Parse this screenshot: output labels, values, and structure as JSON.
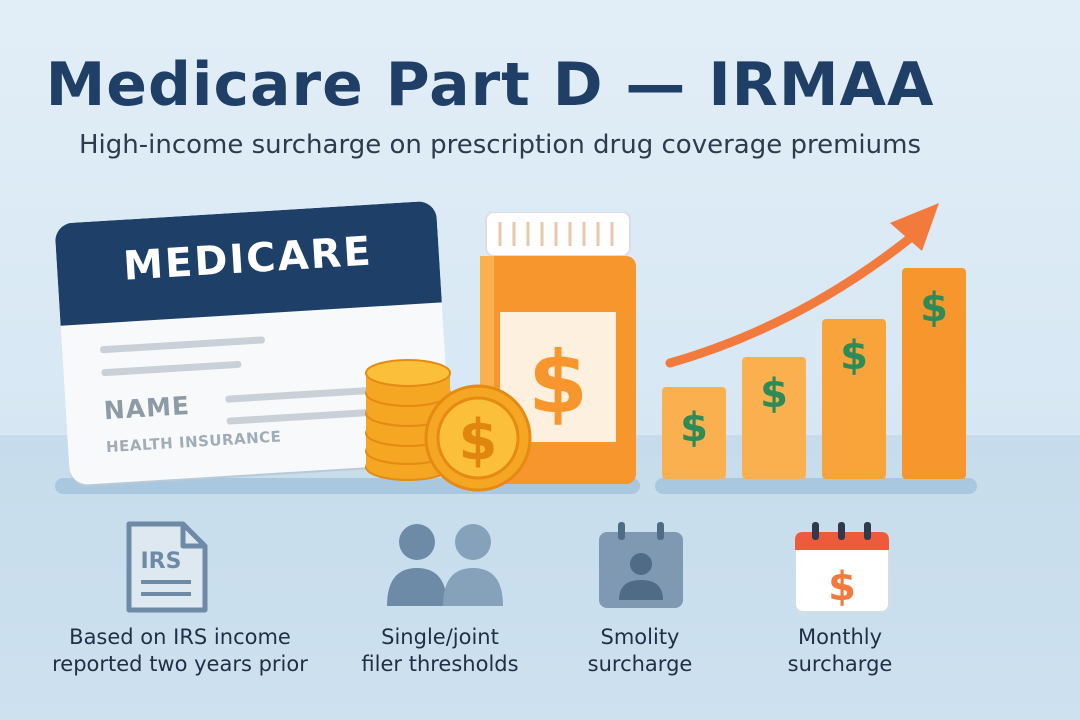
{
  "header": {
    "title": "Medicare Part D — IRMAA",
    "subtitle": "High-income surcharge on prescription drug coverage premiums"
  },
  "card": {
    "brand": "MEDICARE",
    "name_label": "NAME",
    "type_label": "HEALTH INSURANCE"
  },
  "pill_bottle": {
    "symbol": "$"
  },
  "coin": {
    "symbol": "$"
  },
  "chart_bars": {
    "symbol": "$",
    "bar_count": 4,
    "trend": "up"
  },
  "colors": {
    "navy": "#1e3f68",
    "orange": "#f7962c",
    "green": "#2e8b57",
    "arrow": "#f27a3d",
    "icon_slate": "#6d8aa6"
  },
  "features": [
    {
      "icon": "irs-document-icon",
      "icon_text": "IRS",
      "caption_lines": [
        "Based on IRS income",
        "reported two years prior"
      ]
    },
    {
      "icon": "people-icon",
      "caption_lines": [
        "Single/joint",
        "filer thresholds"
      ]
    },
    {
      "icon": "person-calendar-icon",
      "caption_lines": [
        "Smolity",
        "surcharge"
      ]
    },
    {
      "icon": "dollar-calendar-icon",
      "icon_text": "$",
      "caption_lines": [
        "Monthly",
        "surcharge"
      ]
    }
  ]
}
